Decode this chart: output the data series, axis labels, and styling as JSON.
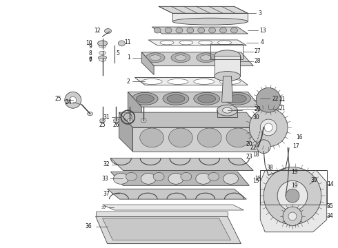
{
  "background_color": "#ffffff",
  "fig_width": 4.9,
  "fig_height": 3.6,
  "dpi": 100,
  "edge_color": "#444444",
  "light_gray": "#e8e8e8",
  "mid_gray": "#cccccc",
  "dark_gray": "#aaaaaa"
}
